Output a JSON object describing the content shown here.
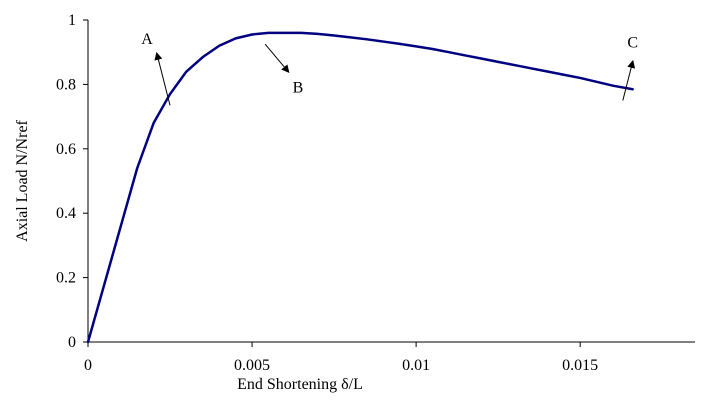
{
  "colors": {
    "series": "#000080",
    "axis": "#000000",
    "annotation": "#000000",
    "background": "#ffffff"
  },
  "chart_data": {
    "type": "line",
    "title": "",
    "xlabel": "End Shortening  δ/L",
    "ylabel": "Axial Load N/Nref",
    "xlim": [
      0,
      0.0185
    ],
    "ylim": [
      0,
      1
    ],
    "grid": false,
    "legend": "none",
    "x_ticks": [
      {
        "value": 0,
        "label": "0"
      },
      {
        "value": 0.005,
        "label": "0.005"
      },
      {
        "value": 0.01,
        "label": "0.01"
      },
      {
        "value": 0.015,
        "label": "0.015"
      }
    ],
    "y_ticks": [
      {
        "value": 0,
        "label": "0"
      },
      {
        "value": 0.2,
        "label": "0.2"
      },
      {
        "value": 0.4,
        "label": "0.4"
      },
      {
        "value": 0.6,
        "label": "0.6"
      },
      {
        "value": 0.8,
        "label": "0.8"
      },
      {
        "value": 1,
        "label": "1"
      }
    ],
    "series": [
      {
        "x": [
          0,
          0.0005,
          0.001,
          0.0015,
          0.002,
          0.0025,
          0.003,
          0.0035,
          0.004,
          0.0045,
          0.005,
          0.0055,
          0.006,
          0.0065,
          0.007,
          0.0075,
          0.008,
          0.0085,
          0.009,
          0.0095,
          0.01,
          0.0105,
          0.011,
          0.0115,
          0.012,
          0.0125,
          0.013,
          0.0135,
          0.014,
          0.0145,
          0.015,
          0.0155,
          0.016,
          0.0166
        ],
        "y": [
          0,
          0.18,
          0.36,
          0.54,
          0.68,
          0.77,
          0.84,
          0.885,
          0.92,
          0.943,
          0.955,
          0.96,
          0.96,
          0.96,
          0.957,
          0.952,
          0.946,
          0.94,
          0.933,
          0.926,
          0.918,
          0.91,
          0.9,
          0.89,
          0.88,
          0.87,
          0.86,
          0.85,
          0.84,
          0.83,
          0.82,
          0.808,
          0.796,
          0.785
        ]
      }
    ],
    "annotations": [
      {
        "label": "A",
        "arrow_from": [
          0.0025,
          0.735
        ],
        "arrow_to": [
          0.0021,
          0.895
        ],
        "label_at": [
          0.0018,
          0.925
        ]
      },
      {
        "label": "B",
        "arrow_from": [
          0.0054,
          0.925
        ],
        "arrow_to": [
          0.0061,
          0.84
        ],
        "label_at": [
          0.0064,
          0.775
        ]
      },
      {
        "label": "C",
        "arrow_from": [
          0.0163,
          0.75
        ],
        "arrow_to": [
          0.0166,
          0.87
        ],
        "label_at": [
          0.0166,
          0.915
        ]
      }
    ]
  }
}
